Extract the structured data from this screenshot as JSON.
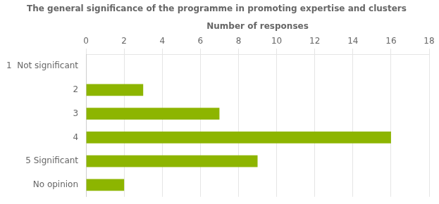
{
  "chart_data": {
    "type": "bar",
    "orientation": "horizontal",
    "title": "The general significance of the programme in promoting expertise and clusters",
    "xlabel": "Number of responses",
    "categories": [
      "1  Not significant",
      "2",
      "3",
      "4",
      "5 Significant",
      "No opinion"
    ],
    "values": [
      0,
      3,
      7,
      16,
      9,
      2
    ],
    "color": "#8db500",
    "xlim": [
      0,
      18
    ],
    "xticks": [
      0,
      2,
      4,
      6,
      8,
      10,
      12,
      14,
      16,
      18
    ],
    "grid": true
  }
}
